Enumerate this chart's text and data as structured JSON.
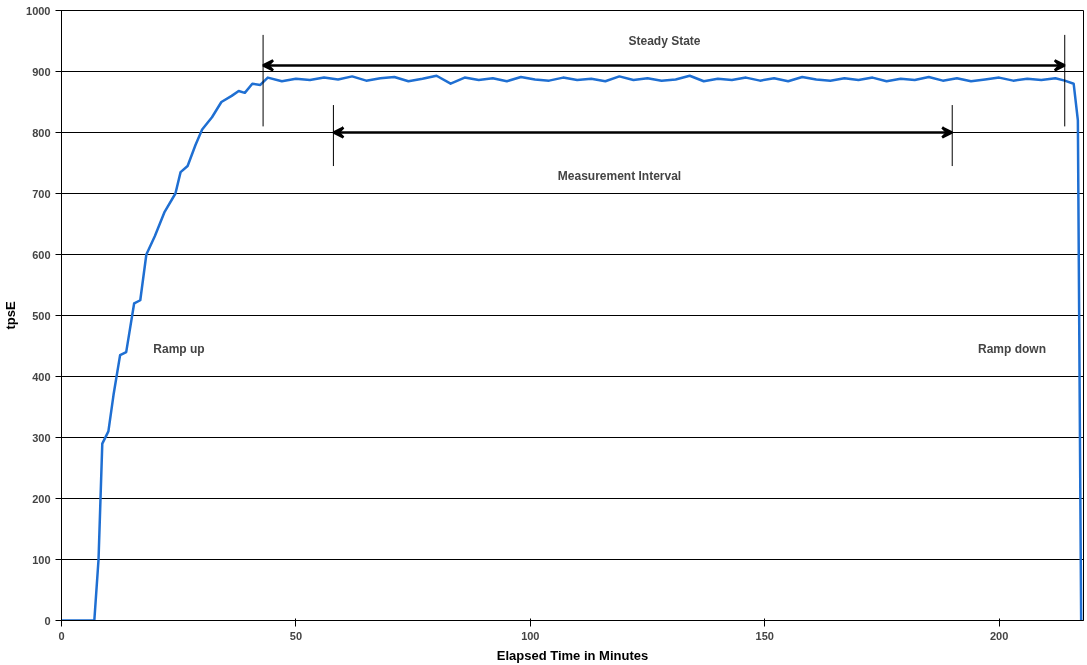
{
  "chart_data": {
    "type": "line",
    "xlabel": "Elapsed Time in Minutes",
    "ylabel": "tpsE",
    "x": [
      0,
      7,
      7.9,
      8.7,
      10,
      11.1,
      12.5,
      13.8,
      15.5,
      16.8,
      18.1,
      19.9,
      22,
      24.3,
      25.4,
      26.9,
      28.6,
      30,
      32.1,
      34.1,
      36.3,
      37.8,
      39.1,
      40.7,
      42.4,
      44,
      47,
      50,
      53,
      56,
      59,
      62,
      65,
      68,
      71,
      74,
      77,
      80,
      83,
      86,
      89,
      92,
      95,
      98,
      101,
      104,
      107,
      110,
      113,
      116,
      119,
      122,
      125,
      128,
      131,
      134,
      137,
      140,
      143,
      146,
      149,
      152,
      155,
      158,
      161,
      164,
      167,
      170,
      173,
      176,
      179,
      182,
      185,
      188,
      191,
      194,
      197,
      200,
      203,
      206,
      209,
      212,
      214,
      215.9,
      216.8,
      217.5
    ],
    "series": [
      {
        "color": "#1f6fd2",
        "values": [
          0,
          0,
          100,
          290,
          310,
          370,
          435,
          440,
          520,
          525,
          600,
          630,
          670,
          700,
          735,
          745,
          780,
          805,
          825,
          850,
          860,
          868,
          865,
          880,
          878,
          890,
          884,
          888,
          886,
          890,
          887,
          892,
          885,
          889,
          891,
          884,
          888,
          893,
          880,
          890,
          886,
          889,
          884,
          891,
          887,
          885,
          890,
          886,
          888,
          884,
          892,
          886,
          889,
          885,
          887,
          893,
          884,
          888,
          886,
          890,
          885,
          889,
          884,
          891,
          887,
          885,
          889,
          886,
          890,
          884,
          888,
          886,
          891,
          885,
          889,
          884,
          887,
          890,
          885,
          888,
          886,
          889,
          885,
          880,
          820,
          0
        ]
      }
    ],
    "xlim": [
      0,
      218
    ],
    "ylim": [
      0,
      1000
    ],
    "xticks": [
      0,
      50,
      100,
      150,
      200
    ],
    "yticks": [
      0,
      100,
      200,
      300,
      400,
      500,
      600,
      700,
      800,
      900,
      1000
    ],
    "grid": "y",
    "marker": "none",
    "line_style": "solid",
    "ref_lines": [
      {
        "axis": "x",
        "value": 43
      },
      {
        "axis": "x",
        "value": 214
      },
      {
        "axis": "x",
        "value": 58
      },
      {
        "axis": "x",
        "value": 190
      }
    ],
    "annotations": [
      "Steady State",
      "Measurement Interval",
      "Ramp up",
      "Ramp down"
    ]
  }
}
